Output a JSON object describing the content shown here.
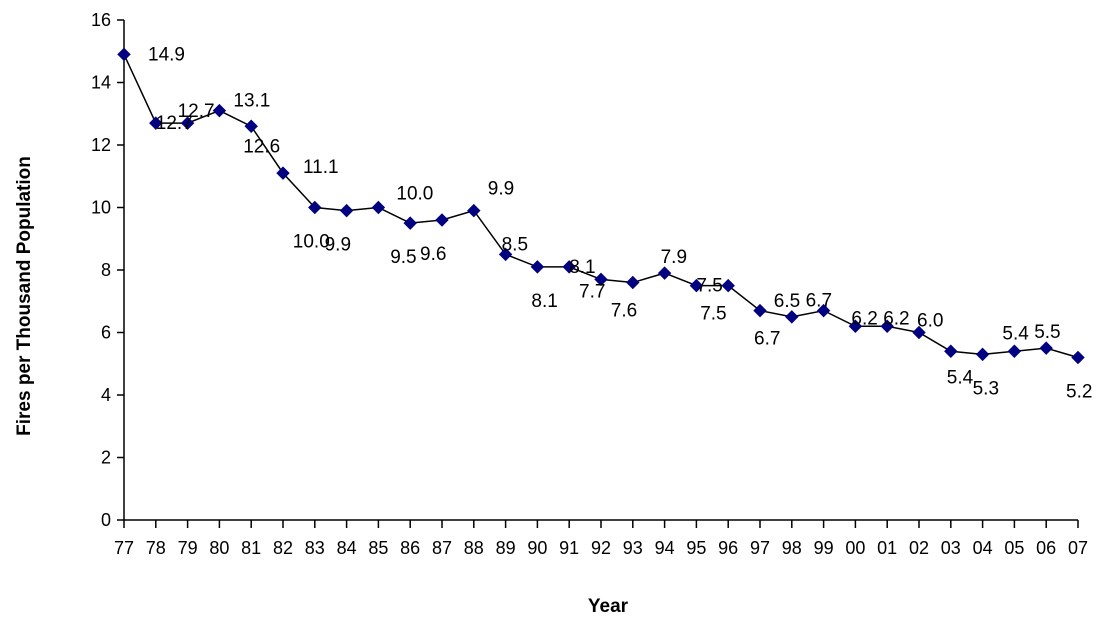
{
  "chart_data": {
    "type": "line",
    "title": "",
    "xlabel": "Year",
    "ylabel": "Fires per Thousand Population",
    "ylim": [
      0,
      16
    ],
    "yticks": [
      "0",
      "2",
      "4",
      "6",
      "8",
      "10",
      "12",
      "14",
      "16"
    ],
    "grid": false,
    "legend": "none",
    "categories": [
      "77",
      "78",
      "79",
      "80",
      "81",
      "82",
      "83",
      "84",
      "85",
      "86",
      "87",
      "88",
      "89",
      "90",
      "91",
      "92",
      "93",
      "94",
      "95",
      "96",
      "97",
      "98",
      "99",
      "00",
      "01",
      "02",
      "03",
      "04",
      "05",
      "06",
      "07"
    ],
    "series": [
      {
        "values": [
          14.9,
          12.7,
          12.7,
          13.1,
          12.6,
          11.1,
          10.0,
          9.9,
          10.0,
          9.5,
          9.6,
          9.9,
          8.5,
          8.1,
          8.1,
          7.7,
          7.6,
          7.9,
          7.5,
          7.5,
          6.7,
          6.5,
          6.7,
          6.2,
          6.2,
          6.0,
          5.4,
          5.3,
          5.4,
          5.5,
          5.2
        ],
        "labels": [
          "14.9",
          "12.7",
          "12.7",
          "13.1",
          "12.6",
          "11.1",
          "10.0",
          "9.9",
          "10.0",
          "9.5",
          "9.6",
          "9.9",
          "8.5",
          "8.1",
          "8.1",
          "7.7",
          "7.6",
          "7.9",
          "7.5",
          "7.5",
          "6.7",
          "6.5",
          "6.7",
          "6.2",
          "6.2",
          "6.0",
          "5.4",
          "5.3",
          "5.4",
          "5.5",
          "5.2"
        ],
        "color": "#000080"
      }
    ]
  }
}
